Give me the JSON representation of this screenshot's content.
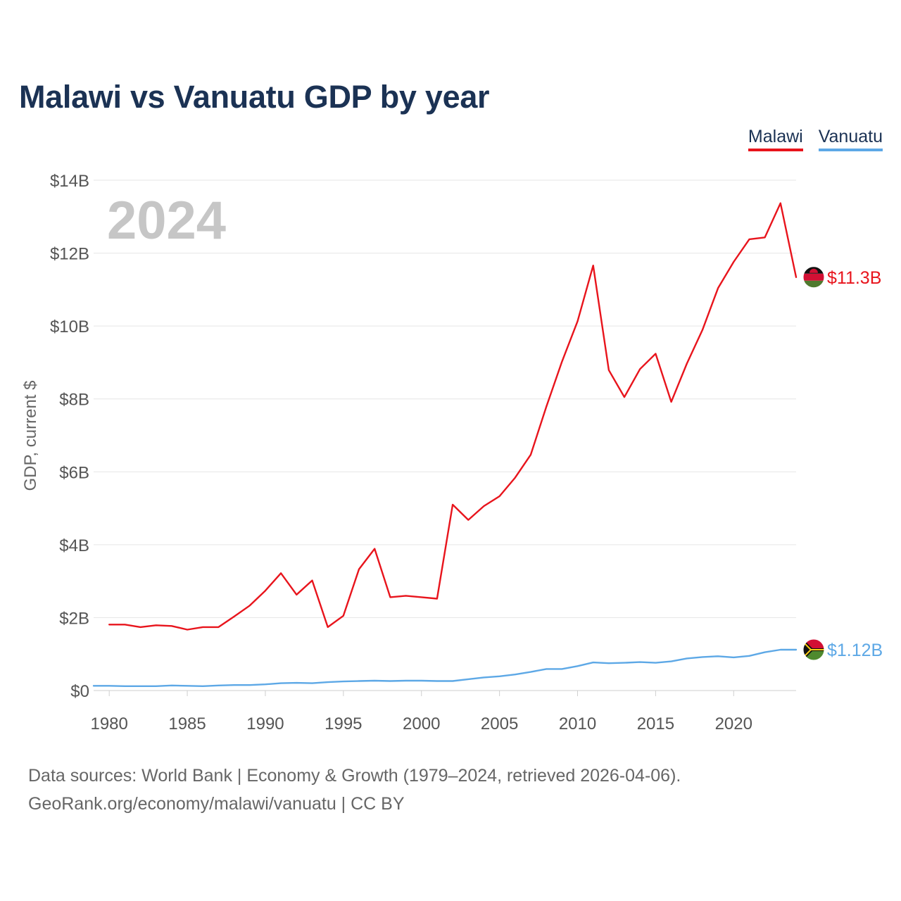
{
  "title": "Malawi vs Vanuatu GDP by year",
  "year_watermark": "2024",
  "legend": [
    {
      "label": "Malawi",
      "color": "#e8141c"
    },
    {
      "label": "Vanuatu",
      "color": "#5da8e6"
    }
  ],
  "footer": {
    "line1": "Data sources: World Bank | Economy & Growth (1979–2024, retrieved 2026-04-06).",
    "line2": "GeoRank.org/economy/malawi/vanuatu | CC BY"
  },
  "chart_data": {
    "type": "line",
    "title": "Malawi vs Vanuatu GDP by year",
    "xlabel": "",
    "ylabel": "GDP, current $",
    "xlim": [
      1979,
      2024
    ],
    "ylim": [
      0,
      14
    ],
    "y_unit": "billion USD",
    "grid": true,
    "legend_position": "top-right",
    "x_ticks": [
      1980,
      1985,
      1990,
      1995,
      2000,
      2005,
      2010,
      2015,
      2020
    ],
    "x_tick_labels": [
      "1980",
      "1985",
      "1990",
      "1995",
      "2000",
      "2005",
      "2010",
      "2015",
      "2020"
    ],
    "y_ticks": [
      0,
      2,
      4,
      6,
      8,
      10,
      12,
      14
    ],
    "y_tick_labels": [
      "$0",
      "$2B",
      "$4B",
      "$6B",
      "$8B",
      "$10B",
      "$12B",
      "$14B"
    ],
    "x": [
      1979,
      1980,
      1981,
      1982,
      1983,
      1984,
      1985,
      1986,
      1987,
      1988,
      1989,
      1990,
      1991,
      1992,
      1993,
      1994,
      1995,
      1996,
      1997,
      1998,
      1999,
      2000,
      2001,
      2002,
      2003,
      2004,
      2005,
      2006,
      2007,
      2008,
      2009,
      2010,
      2011,
      2012,
      2013,
      2014,
      2015,
      2016,
      2017,
      2018,
      2019,
      2020,
      2021,
      2022,
      2023,
      2024
    ],
    "series": [
      {
        "name": "Malawi",
        "color": "#e8141c",
        "end_label": "$11.3B",
        "values": [
          null,
          1.81,
          1.81,
          1.74,
          1.79,
          1.77,
          1.67,
          1.74,
          1.74,
          2.03,
          2.33,
          2.74,
          3.22,
          2.63,
          3.02,
          1.74,
          2.05,
          3.33,
          3.89,
          2.56,
          2.6,
          2.56,
          2.52,
          5.1,
          4.68,
          5.06,
          5.33,
          5.84,
          6.47,
          7.79,
          9.02,
          10.13,
          11.66,
          8.79,
          8.05,
          8.82,
          9.24,
          7.92,
          8.97,
          9.89,
          11.04,
          11.76,
          12.38,
          12.43,
          13.37,
          11.34
        ]
      },
      {
        "name": "Vanuatu",
        "color": "#5da8e6",
        "end_label": "$1.12B",
        "values": [
          0.13,
          0.13,
          0.12,
          0.12,
          0.12,
          0.14,
          0.13,
          0.12,
          0.14,
          0.15,
          0.15,
          0.17,
          0.2,
          0.21,
          0.2,
          0.23,
          0.25,
          0.26,
          0.27,
          0.26,
          0.27,
          0.27,
          0.26,
          0.26,
          0.31,
          0.36,
          0.39,
          0.44,
          0.51,
          0.59,
          0.59,
          0.67,
          0.77,
          0.75,
          0.76,
          0.78,
          0.76,
          0.8,
          0.88,
          0.92,
          0.94,
          0.91,
          0.95,
          1.05,
          1.12,
          1.12
        ]
      }
    ]
  }
}
